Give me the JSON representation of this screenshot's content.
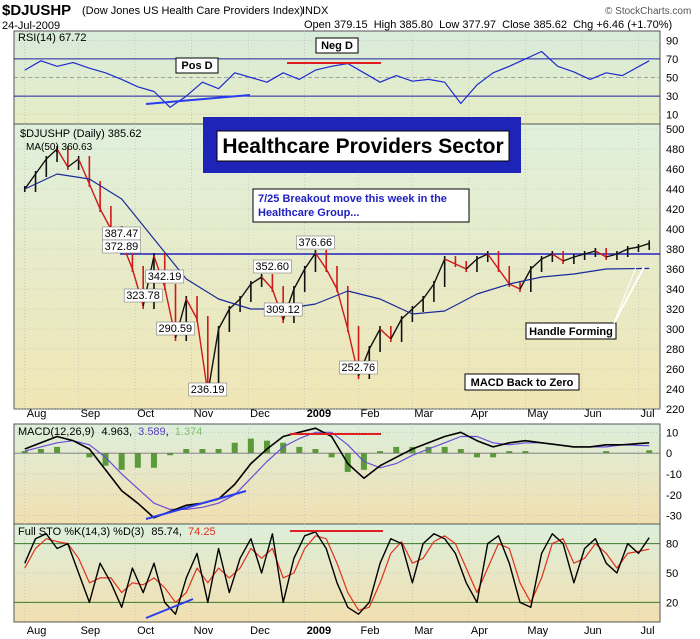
{
  "header": {
    "symbol": "$DJUSHP",
    "name": "(Dow Jones US Health Care Providers Index)",
    "exchange": "INDX",
    "date": "24-Jul-2009",
    "ohlc": "Open 379.15  High 385.80  Low 377.97  Close 385.62  Chg +6.46 (+1.70%)",
    "copyright": "© StockCharts.com"
  },
  "chart_data": [
    {
      "panel": "rsi",
      "type": "line",
      "label": "RSI(14) 67.72",
      "ylim": [
        0,
        100
      ],
      "yticks": [
        10,
        30,
        50,
        70,
        90
      ],
      "reference_lines": [
        30,
        70
      ],
      "series": [
        {
          "name": "RSI(14)",
          "x": [
            0,
            6,
            12,
            18,
            24,
            30,
            36,
            42,
            48,
            54,
            60,
            66,
            72,
            78,
            84,
            90,
            96,
            102,
            108,
            114,
            120,
            126,
            132,
            138,
            144,
            150,
            156,
            162,
            168,
            174,
            180,
            186,
            192,
            198,
            204,
            210,
            216,
            222,
            232
          ],
          "values": [
            58,
            68,
            62,
            66,
            60,
            55,
            48,
            40,
            35,
            18,
            30,
            45,
            38,
            55,
            50,
            45,
            55,
            48,
            58,
            62,
            65,
            55,
            45,
            52,
            46,
            48,
            45,
            22,
            42,
            55,
            62,
            70,
            78,
            62,
            56,
            48,
            55,
            52,
            68
          ]
        }
      ],
      "annotations": [
        "Pos D",
        "Neg D"
      ]
    },
    {
      "panel": "price",
      "type": "ohlc",
      "label": "$DJUSHP (Daily) 385.62",
      "ylim": [
        220,
        505
      ],
      "yticks": [
        220,
        240,
        260,
        280,
        300,
        320,
        340,
        360,
        380,
        400,
        420,
        440,
        460,
        480,
        500
      ],
      "series": [
        {
          "name": "$DJUSHP (Daily)",
          "x": [
            0,
            4,
            8,
            12,
            16,
            20,
            24,
            28,
            32,
            36,
            40,
            44,
            48,
            52,
            56,
            60,
            64,
            68,
            72,
            76,
            80,
            84,
            88,
            92,
            96,
            100,
            104,
            108,
            112,
            116,
            120,
            124,
            128,
            132,
            136,
            140,
            144,
            148,
            152,
            156,
            160,
            164,
            168,
            172,
            176,
            180,
            184,
            188,
            192,
            196,
            200,
            204,
            208,
            212,
            216,
            220,
            224,
            228,
            232
          ],
          "values": [
            440,
            455,
            470,
            480,
            462,
            470,
            445,
            420,
            400,
            387,
            360,
            323,
            373,
            342,
            291,
            330,
            310,
            236,
            300,
            320,
            330,
            345,
            352,
            340,
            309,
            340,
            360,
            376,
            360,
            340,
            300,
            253,
            280,
            300,
            290,
            310,
            320,
            330,
            345,
            370,
            365,
            360,
            370,
            375,
            360,
            345,
            340,
            360,
            370,
            375,
            368,
            372,
            375,
            378,
            372,
            375,
            380,
            382,
            385.6
          ]
        },
        {
          "name": "MA(50) 360.63",
          "x": [
            0,
            12,
            24,
            36,
            48,
            60,
            72,
            84,
            96,
            108,
            120,
            132,
            144,
            156,
            168,
            180,
            192,
            204,
            216,
            232
          ],
          "values": [
            440,
            455,
            450,
            430,
            390,
            350,
            330,
            320,
            320,
            325,
            338,
            330,
            315,
            318,
            335,
            345,
            352,
            355,
            360,
            360.6
          ]
        }
      ],
      "price_labels": [
        "387.47",
        "372.89",
        "342.19",
        "323.78",
        "290.59",
        "236.19",
        "352.60",
        "309.12",
        "376.66",
        "252.76"
      ],
      "resistance_level": 375,
      "annotations": {
        "title": "Healthcare Providers Sector",
        "note": "7/25  Breakout move this week in the Healthcare Group...",
        "handle": "Handle Forming",
        "macd_zero": "MACD Back to Zero"
      }
    },
    {
      "panel": "macd",
      "type": "line",
      "label": "MACD(12,26,9)",
      "values_text": [
        "4.963",
        "3.589",
        "1.374"
      ],
      "ylim": [
        -34,
        14
      ],
      "yticks": [
        -30,
        -20,
        -10,
        0,
        10
      ],
      "series": [
        {
          "name": "MACD",
          "x": [
            0,
            6,
            12,
            18,
            24,
            30,
            36,
            42,
            48,
            54,
            60,
            66,
            72,
            78,
            84,
            90,
            96,
            102,
            108,
            114,
            120,
            126,
            132,
            138,
            144,
            150,
            156,
            162,
            168,
            174,
            180,
            186,
            192,
            198,
            204,
            210,
            216,
            222,
            232
          ],
          "values": [
            2,
            5,
            8,
            6,
            2,
            -8,
            -18,
            -24,
            -31,
            -28,
            -25,
            -24,
            -22,
            -15,
            -5,
            2,
            8,
            10,
            12,
            8,
            -5,
            -12,
            -6,
            -2,
            2,
            5,
            8,
            10,
            6,
            3,
            5,
            6,
            5,
            4,
            3,
            3,
            4,
            4,
            5
          ]
        },
        {
          "name": "Signal",
          "x": [
            0,
            6,
            12,
            18,
            24,
            30,
            36,
            42,
            48,
            54,
            60,
            66,
            72,
            78,
            84,
            90,
            96,
            102,
            108,
            114,
            120,
            126,
            132,
            138,
            144,
            150,
            156,
            162,
            168,
            174,
            180,
            186,
            192,
            198,
            204,
            210,
            216,
            222,
            232
          ],
          "values": [
            1,
            3,
            5,
            6,
            4,
            -2,
            -10,
            -17,
            -24,
            -27,
            -27,
            -26,
            -24,
            -20,
            -12,
            -4,
            3,
            7,
            10,
            10,
            4,
            -4,
            -7,
            -5,
            -1,
            2,
            5,
            8,
            8,
            5,
            4,
            5,
            5,
            4,
            3,
            3,
            3,
            4,
            3.6
          ]
        }
      ]
    },
    {
      "panel": "stochastic",
      "type": "line",
      "label": "Full STO %K(14,3) %D(3)",
      "values_text": [
        "85.74",
        "74.25"
      ],
      "ylim": [
        0,
        100
      ],
      "yticks": [
        20,
        50,
        80
      ],
      "reference_lines": [
        20,
        80
      ],
      "series": [
        {
          "name": "%K",
          "x": [
            0,
            4,
            8,
            12,
            16,
            20,
            24,
            28,
            32,
            36,
            40,
            44,
            48,
            52,
            56,
            60,
            64,
            68,
            72,
            76,
            80,
            84,
            88,
            92,
            96,
            100,
            104,
            108,
            112,
            116,
            120,
            124,
            128,
            132,
            136,
            140,
            144,
            148,
            152,
            156,
            160,
            164,
            168,
            172,
            176,
            180,
            184,
            188,
            192,
            196,
            200,
            204,
            208,
            212,
            216,
            220,
            224,
            228,
            232
          ],
          "values": [
            60,
            85,
            90,
            75,
            80,
            50,
            20,
            60,
            40,
            15,
            55,
            30,
            60,
            20,
            8,
            45,
            70,
            20,
            75,
            30,
            65,
            85,
            50,
            90,
            20,
            65,
            88,
            92,
            75,
            40,
            15,
            8,
            20,
            60,
            85,
            80,
            40,
            80,
            90,
            85,
            70,
            40,
            20,
            80,
            88,
            60,
            20,
            15,
            70,
            90,
            80,
            40,
            75,
            85,
            60,
            50,
            80,
            70,
            86
          ]
        },
        {
          "name": "%D",
          "x": [
            0,
            4,
            8,
            12,
            16,
            20,
            24,
            28,
            32,
            36,
            40,
            44,
            48,
            52,
            56,
            60,
            64,
            68,
            72,
            76,
            80,
            84,
            88,
            92,
            96,
            100,
            104,
            108,
            112,
            116,
            120,
            124,
            128,
            132,
            136,
            140,
            144,
            148,
            152,
            156,
            160,
            164,
            168,
            172,
            176,
            180,
            184,
            188,
            192,
            196,
            200,
            204,
            208,
            212,
            216,
            220,
            224,
            228,
            232
          ],
          "values": [
            55,
            75,
            85,
            82,
            80,
            65,
            40,
            45,
            45,
            30,
            40,
            38,
            45,
            35,
            20,
            30,
            55,
            40,
            55,
            45,
            55,
            75,
            65,
            75,
            45,
            50,
            75,
            88,
            85,
            60,
            30,
            12,
            15,
            40,
            70,
            82,
            60,
            65,
            82,
            88,
            80,
            55,
            30,
            55,
            80,
            75,
            40,
            20,
            45,
            80,
            85,
            60,
            65,
            80,
            70,
            55,
            70,
            72,
            74.25
          ]
        }
      ],
      "annotations": []
    }
  ],
  "x_axis": {
    "labels": [
      "Aug",
      "Sep",
      "Oct",
      "Nov",
      "Dec",
      "2009",
      "Feb",
      "Mar",
      "Apr",
      "May",
      "Jun",
      "Jul"
    ],
    "positions": [
      0,
      20,
      41,
      62,
      83,
      104,
      124,
      144,
      165,
      186,
      207,
      228
    ],
    "range": [
      -4,
      236
    ]
  }
}
